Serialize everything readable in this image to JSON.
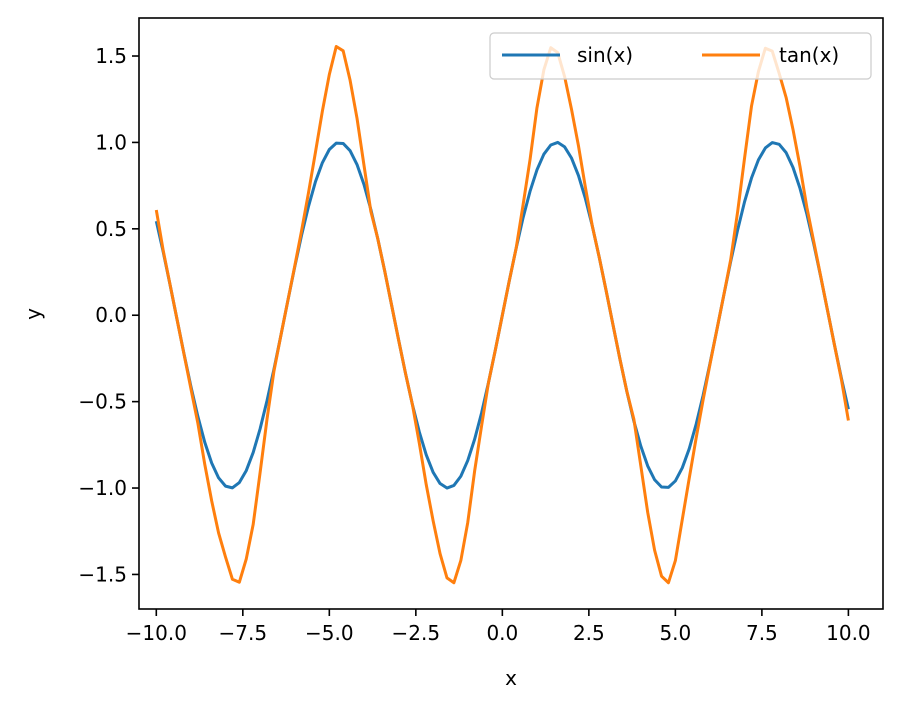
{
  "chart_data": {
    "type": "line",
    "xlabel": "x",
    "ylabel": "y",
    "xlim": [
      -10.5,
      11.0
    ],
    "ylim": [
      -1.7,
      1.72
    ],
    "x_ticks": [
      -10.0,
      -7.5,
      -5.0,
      -2.5,
      0.0,
      2.5,
      5.0,
      7.5,
      10.0
    ],
    "x_tick_labels": [
      "−10.0",
      "−7.5",
      "−5.0",
      "−2.5",
      "0.0",
      "2.5",
      "5.0",
      "7.5",
      "10.0"
    ],
    "y_ticks": [
      -1.5,
      -1.0,
      -0.5,
      0.0,
      0.5,
      1.0,
      1.5
    ],
    "y_tick_labels": [
      "−1.5",
      "−1.0",
      "−0.5",
      "0.0",
      "0.5",
      "1.0",
      "1.5"
    ],
    "grid": false,
    "legend_position": "top-right",
    "x": [
      -10.0,
      -9.8,
      -9.6,
      -9.4,
      -9.2,
      -9.0,
      -8.8,
      -8.6,
      -8.4,
      -8.2,
      -8.0,
      -7.8,
      -7.6,
      -7.4,
      -7.2,
      -7.0,
      -6.8,
      -6.6,
      -6.4,
      -6.2,
      -6.0,
      -5.8,
      -5.6,
      -5.4,
      -5.2,
      -5.0,
      -4.8,
      -4.6,
      -4.4,
      -4.2,
      -4.0,
      -3.8,
      -3.6,
      -3.4,
      -3.2,
      -3.0,
      -2.8,
      -2.6,
      -2.4,
      -2.2,
      -2.0,
      -1.8,
      -1.6,
      -1.4,
      -1.2,
      -1.0,
      -0.8,
      -0.6,
      -0.4,
      -0.2,
      0.0,
      0.2,
      0.4,
      0.6,
      0.8,
      1.0,
      1.2,
      1.4,
      1.6,
      1.8,
      2.0,
      2.2,
      2.4,
      2.6,
      2.8,
      3.0,
      3.2,
      3.4,
      3.6,
      3.8,
      4.0,
      4.2,
      4.4,
      4.6,
      4.8,
      5.0,
      5.2,
      5.4,
      5.6,
      5.8,
      6.0,
      6.2,
      6.4,
      6.6,
      6.8,
      7.0,
      7.2,
      7.4,
      7.6,
      7.8,
      8.0,
      8.2,
      8.4,
      8.6,
      8.8,
      9.0,
      9.2,
      9.4,
      9.6,
      9.8,
      10.0
    ],
    "series": [
      {
        "name": "sin(x)",
        "color": "#1f77b4",
        "values": [
          0.544,
          0.366,
          0.174,
          -0.025,
          -0.223,
          -0.412,
          -0.585,
          -0.735,
          -0.855,
          -0.941,
          -0.989,
          -0.999,
          -0.968,
          -0.899,
          -0.794,
          -0.657,
          -0.494,
          -0.312,
          -0.117,
          0.083,
          0.279,
          0.465,
          0.631,
          0.773,
          0.883,
          0.959,
          0.996,
          0.994,
          0.952,
          0.872,
          0.757,
          0.612,
          0.443,
          0.256,
          0.058,
          -0.141,
          -0.335,
          -0.516,
          -0.675,
          -0.808,
          -0.909,
          -0.974,
          -1.0,
          -0.985,
          -0.932,
          -0.841,
          -0.717,
          -0.565,
          -0.389,
          -0.199,
          0.0,
          0.199,
          0.389,
          0.565,
          0.717,
          0.841,
          0.932,
          0.985,
          1.0,
          0.974,
          0.909,
          0.808,
          0.675,
          0.516,
          0.335,
          0.141,
          -0.058,
          -0.256,
          -0.443,
          -0.612,
          -0.757,
          -0.872,
          -0.952,
          -0.994,
          -0.996,
          -0.959,
          -0.883,
          -0.773,
          -0.631,
          -0.465,
          -0.279,
          -0.083,
          0.117,
          0.312,
          0.494,
          0.657,
          0.794,
          0.899,
          0.968,
          0.999,
          0.989,
          0.941,
          0.855,
          0.735,
          0.585,
          0.412,
          0.223,
          0.025,
          -0.174,
          -0.366,
          -0.544
        ]
      },
      {
        "name": "tan(x)",
        "color": "#ff7f0e",
        "values": [
          0.609,
          0.374,
          0.175,
          -0.025,
          -0.225,
          -0.425,
          -0.624,
          -0.862,
          -1.074,
          -1.26,
          -1.399,
          -1.528,
          -1.545,
          -1.41,
          -1.21,
          -0.91,
          -0.6,
          -0.323,
          -0.117,
          0.083,
          0.284,
          0.491,
          0.711,
          0.944,
          1.182,
          1.393,
          1.555,
          1.53,
          1.36,
          1.14,
          0.87,
          0.601,
          0.443,
          0.256,
          0.058,
          -0.141,
          -0.335,
          -0.516,
          -0.74,
          -0.98,
          -1.19,
          -1.38,
          -1.52,
          -1.548,
          -1.42,
          -1.2,
          -0.9,
          -0.64,
          -0.389,
          -0.199,
          0.0,
          0.199,
          0.389,
          0.64,
          0.9,
          1.2,
          1.42,
          1.548,
          1.52,
          1.38,
          1.19,
          0.98,
          0.74,
          0.516,
          0.335,
          0.141,
          -0.058,
          -0.256,
          -0.443,
          -0.601,
          -0.87,
          -1.14,
          -1.36,
          -1.51,
          -1.548,
          -1.42,
          -1.182,
          -0.944,
          -0.711,
          -0.491,
          -0.284,
          -0.083,
          0.117,
          0.323,
          0.6,
          0.91,
          1.21,
          1.41,
          1.545,
          1.528,
          1.399,
          1.26,
          1.074,
          0.862,
          0.624,
          0.425,
          0.225,
          0.025,
          -0.175,
          -0.374,
          -0.609
        ]
      }
    ]
  }
}
